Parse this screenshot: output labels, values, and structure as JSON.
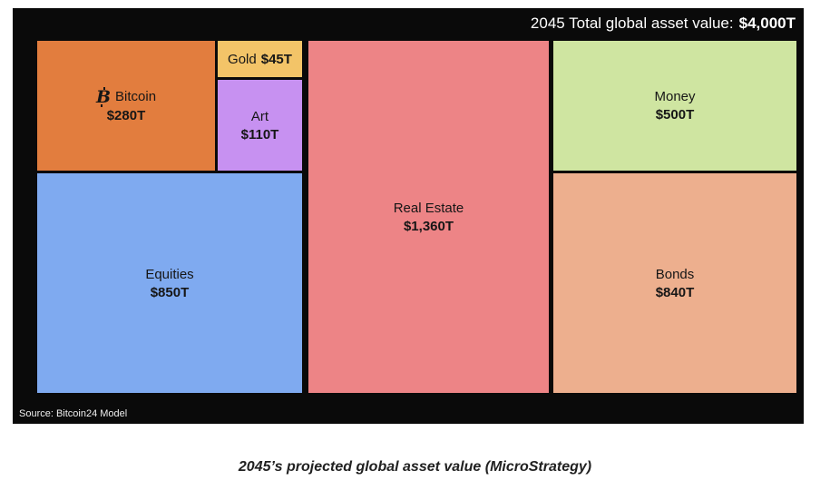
{
  "chart_data": {
    "type": "treemap",
    "title": "2045 Total global asset value:",
    "title_value": "$4,000T",
    "unit": "trillion USD",
    "total": 4000,
    "bitcoin_icon_glyph": "B",
    "items": [
      {
        "name": "Bitcoin",
        "value": 280,
        "value_label": "$280T",
        "color": "#e27d3e"
      },
      {
        "name": "Gold",
        "value": 45,
        "value_label": "$45T",
        "color": "#f3c468"
      },
      {
        "name": "Art",
        "value": 110,
        "value_label": "$110T",
        "color": "#c791f1"
      },
      {
        "name": "Equities",
        "value": 850,
        "value_label": "$850T",
        "color": "#7faaf0"
      },
      {
        "name": "Real Estate",
        "value": 1360,
        "value_label": "$1,360T",
        "color": "#ed8486"
      },
      {
        "name": "Money",
        "value": 500,
        "value_label": "$500T",
        "color": "#cfe5a1"
      },
      {
        "name": "Bonds",
        "value": 840,
        "value_label": "$840T",
        "color": "#edaf8e"
      }
    ],
    "background_color": "#0a0a0a",
    "source": "Source: Bitcoin24 Model",
    "caption": "2045’s projected global asset value (MicroStrategy)",
    "legend_position": "none",
    "grid": false
  }
}
